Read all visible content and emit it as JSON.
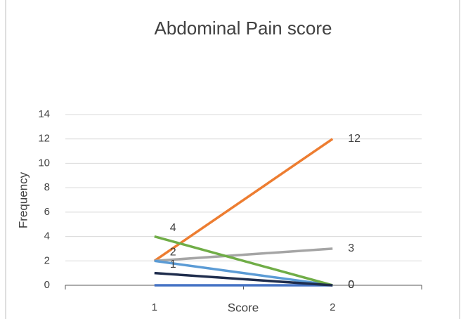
{
  "chart_data": {
    "type": "line",
    "title": "Abdominal Pain score",
    "x_label": "Score",
    "y_label": "Frequency",
    "categories": [
      "1",
      "2"
    ],
    "series": [
      {
        "color": "#4472c4",
        "values": [
          0,
          0
        ]
      },
      {
        "color": "#ed7d31",
        "values": [
          2,
          12
        ]
      },
      {
        "color": "#a5a5a5",
        "values": [
          2,
          3
        ]
      },
      {
        "color": "#5b9bd5",
        "values": [
          2,
          0
        ]
      },
      {
        "color": "#70ad47",
        "values": [
          4,
          0
        ]
      },
      {
        "color": "#1f2d4d",
        "values": [
          1,
          0
        ]
      }
    ],
    "ylim": [
      0,
      14
    ],
    "yticks": [
      0,
      2,
      4,
      6,
      8,
      10,
      12,
      14
    ],
    "grid": true
  }
}
